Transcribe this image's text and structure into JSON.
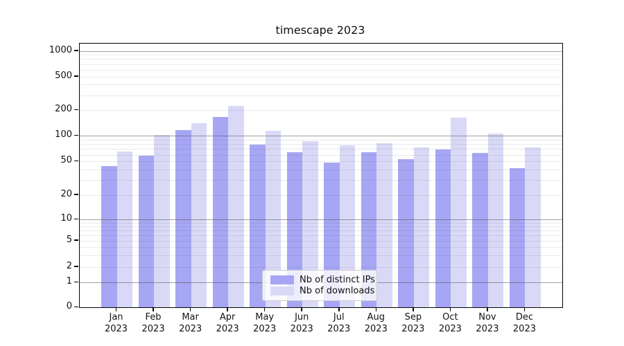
{
  "chart_data": {
    "type": "bar",
    "title": "timescape 2023",
    "months": [
      "Jan",
      "Feb",
      "Mar",
      "Apr",
      "May",
      "Jun",
      "Jul",
      "Aug",
      "Sep",
      "Oct",
      "Nov",
      "Dec"
    ],
    "year": "2023",
    "series": [
      {
        "name": "Nb of distinct IPs",
        "color": "#a6a6f4",
        "values": [
          44,
          59,
          116,
          166,
          78,
          64,
          49,
          64,
          53,
          69,
          63,
          42
        ]
      },
      {
        "name": "Nb of downloads",
        "color": "#d9d9f7",
        "values": [
          65,
          102,
          141,
          225,
          114,
          86,
          77,
          81,
          73,
          163,
          105,
          73
        ]
      }
    ],
    "yscale": "asinh",
    "yticks": [
      0,
      1,
      2,
      5,
      10,
      20,
      50,
      100,
      200,
      500,
      1000
    ],
    "ylim": [
      0,
      1100
    ],
    "xlabel": "",
    "ylabel": "",
    "grid": true,
    "grid_on_top": true,
    "legend_position": "lower center",
    "colors": {
      "major_grid": "#a8a8a8",
      "minor_grid": "#eaeaea",
      "axis": "#000000",
      "background": "#ffffff"
    }
  }
}
